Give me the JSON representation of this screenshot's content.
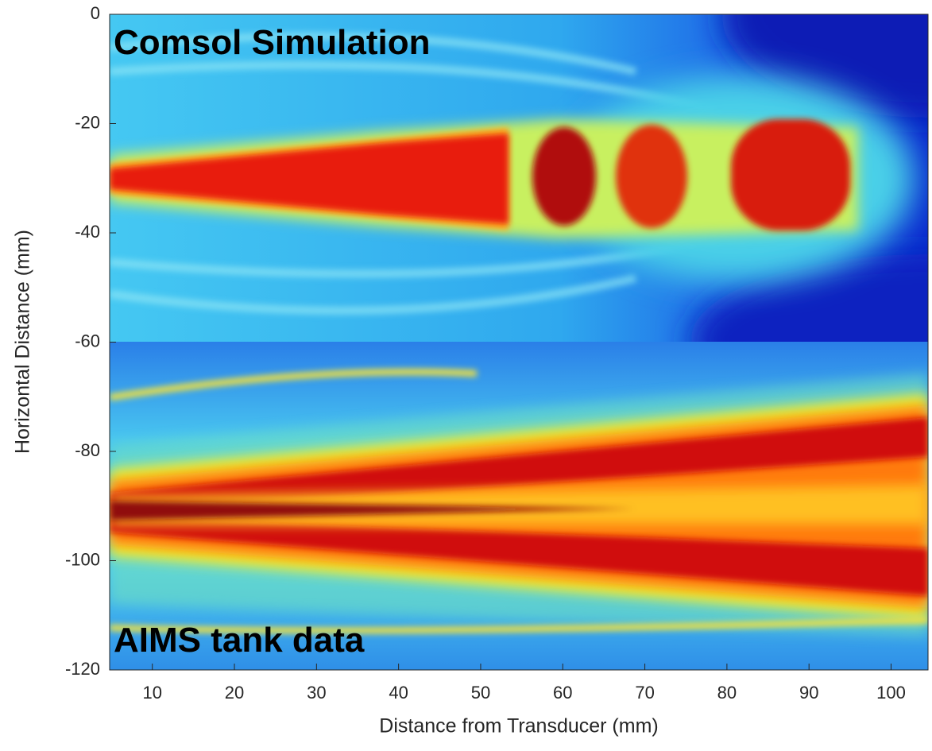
{
  "chart_data": {
    "type": "heatmap",
    "xlabel": "Distance from Transducer (mm)",
    "ylabel": "Horizontal Distance (mm)",
    "annotations": [
      "Comsol Simulation",
      "AIMS tank data"
    ],
    "xlim": [
      4.8,
      104.5
    ],
    "xticks": [
      10,
      20,
      30,
      40,
      50,
      60,
      70,
      80,
      90,
      100
    ],
    "ylim": [
      -120,
      0
    ],
    "yticks": [
      0,
      -20,
      -40,
      -60,
      -80,
      -100,
      -120
    ],
    "colormap": "jet"
  }
}
